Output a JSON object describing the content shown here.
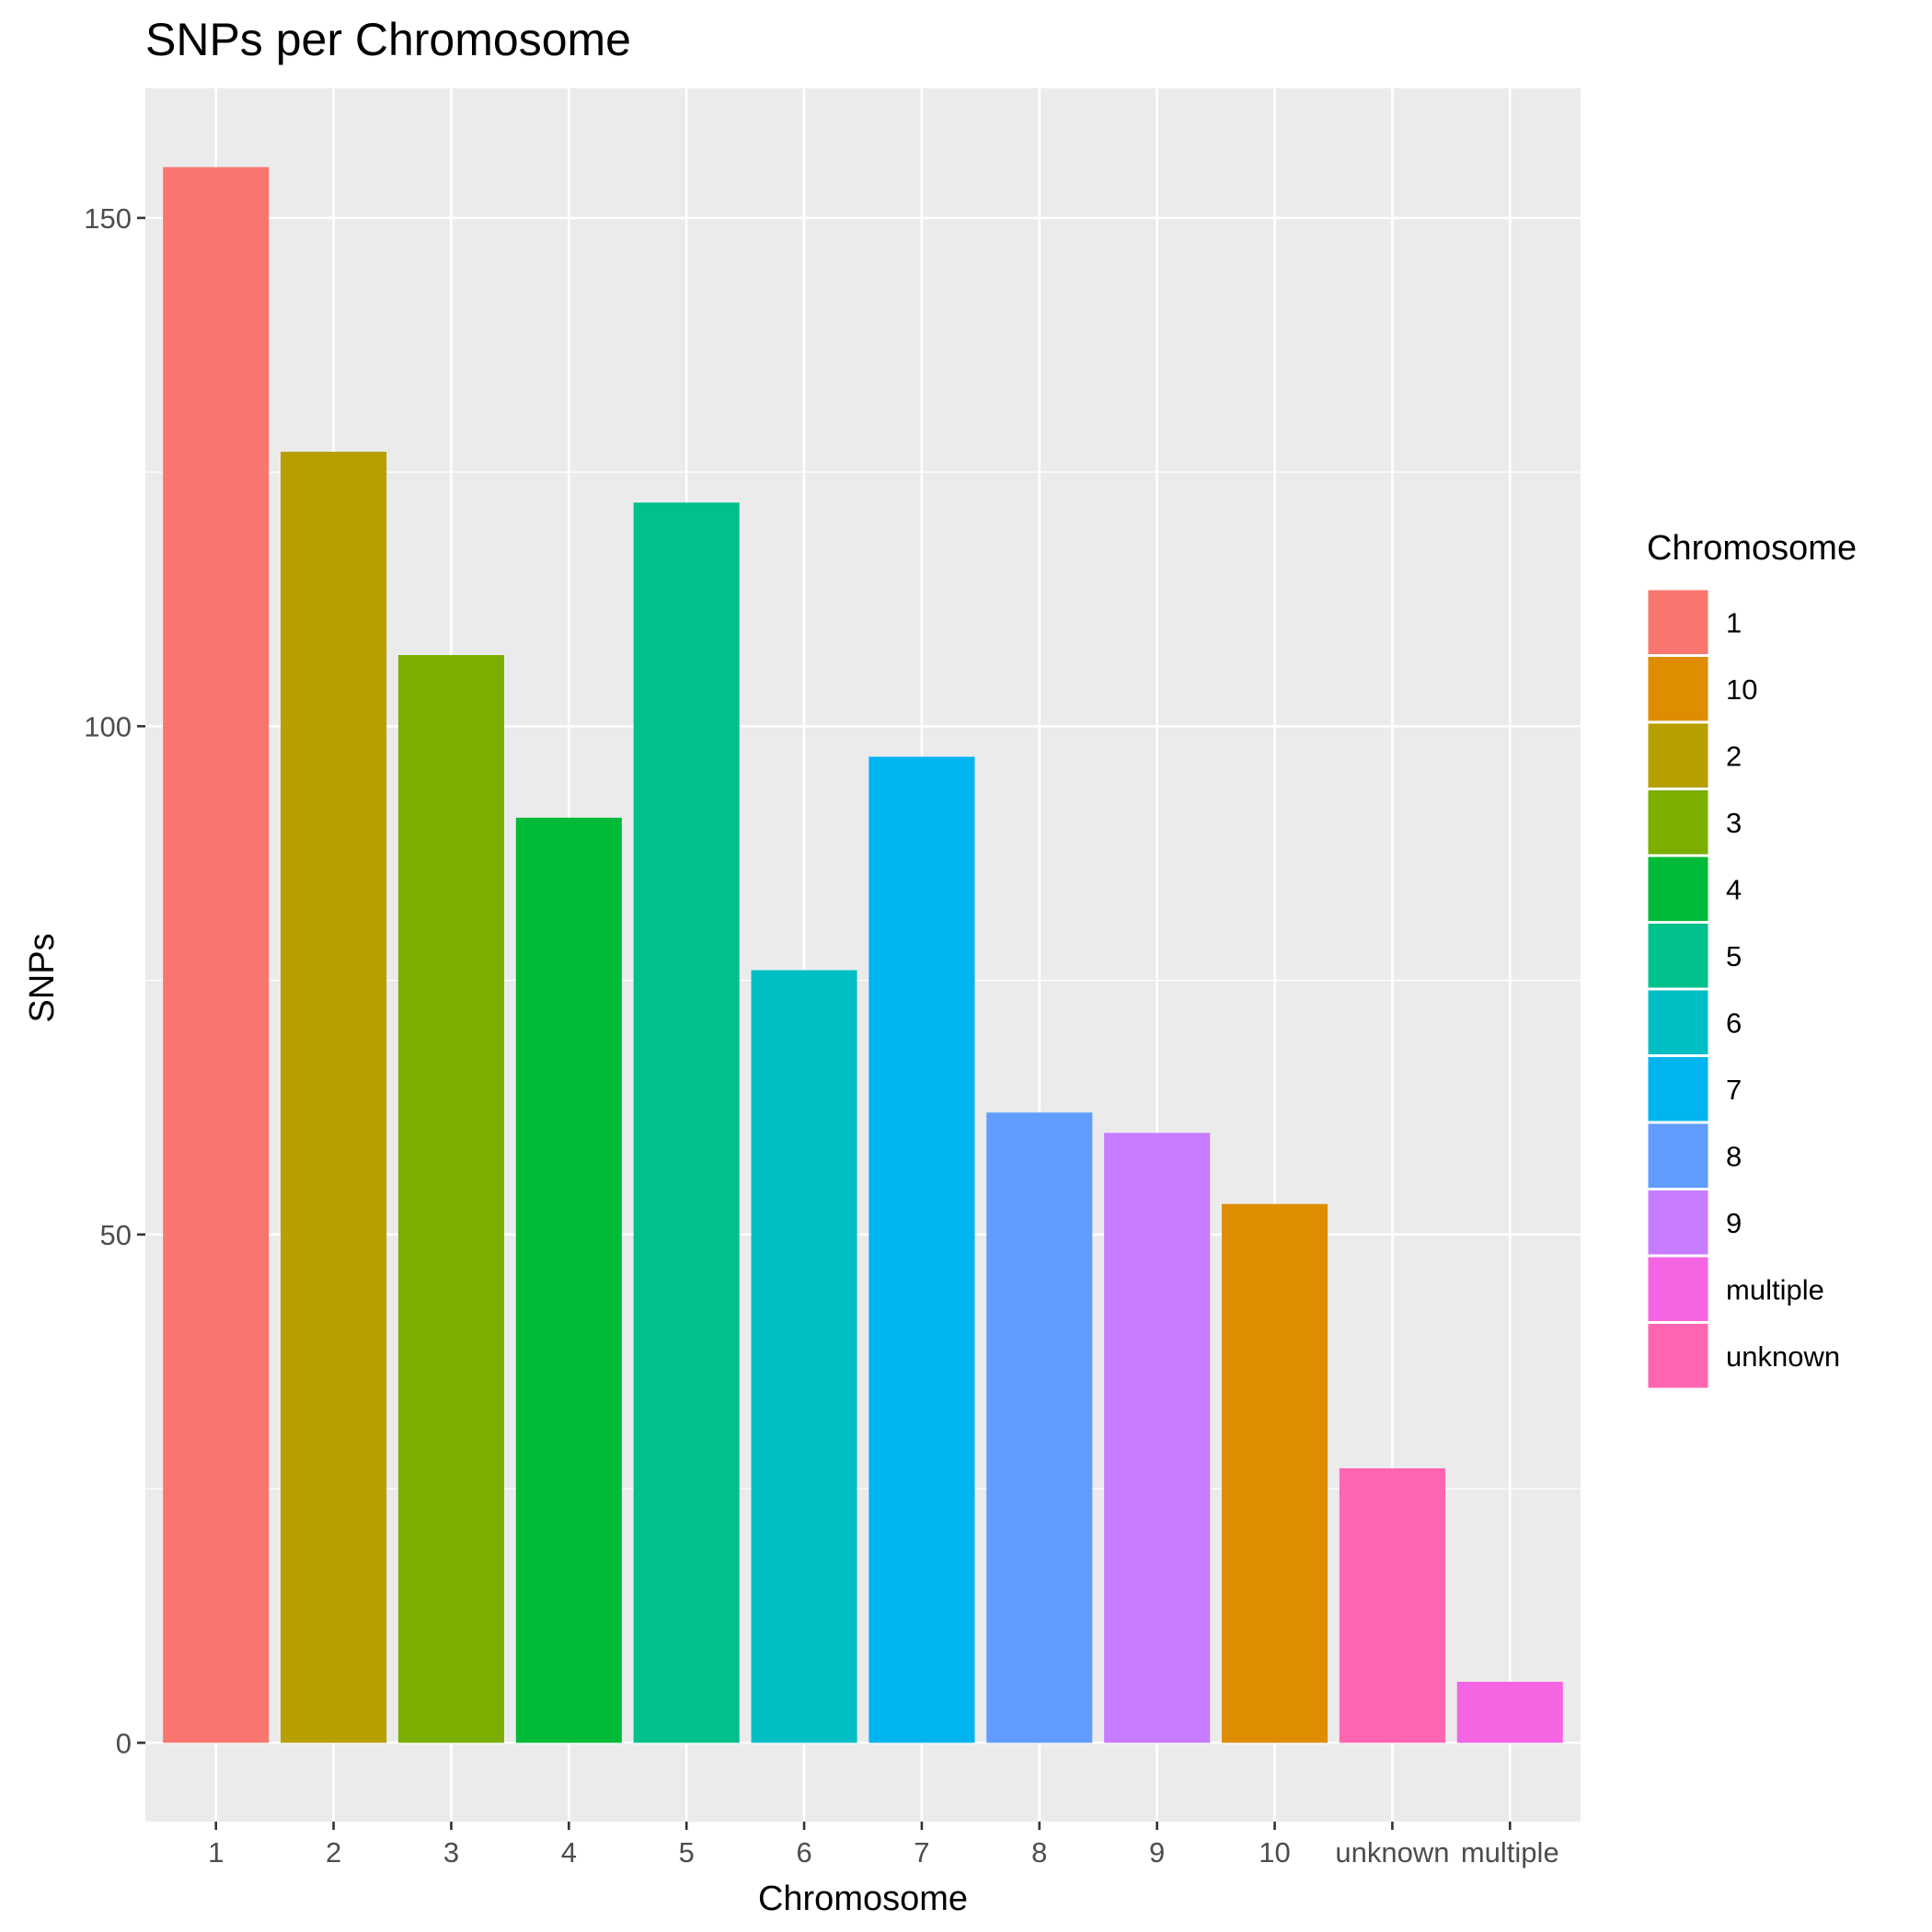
{
  "chart_data": {
    "type": "bar",
    "title": "SNPs per Chromosome",
    "xlabel": "Chromosome",
    "ylabel": "SNPs",
    "categories": [
      "1",
      "2",
      "3",
      "4",
      "5",
      "6",
      "7",
      "8",
      "9",
      "10",
      "unknown",
      "multiple"
    ],
    "values": [
      155,
      127,
      107,
      91,
      122,
      76,
      97,
      62,
      60,
      53,
      27,
      6
    ],
    "bar_colors": [
      "#F8766D",
      "#B79F00",
      "#7CAE00",
      "#00BA38",
      "#00C08B",
      "#00BFC4",
      "#00B4EF",
      "#619CFF",
      "#C77CFF",
      "#DE8C00",
      "#FF64B0",
      "#F564E3"
    ],
    "ylim": [
      -7.75,
      162.75
    ],
    "yticks": [
      0,
      50,
      100,
      150
    ],
    "grid": true,
    "panel_background": "#EBEBEB",
    "grid_color": "#FFFFFF",
    "legend": {
      "title": "Chromosome",
      "placement": "right",
      "items": [
        {
          "label": "1",
          "color": "#F8766D"
        },
        {
          "label": "10",
          "color": "#DE8C00"
        },
        {
          "label": "2",
          "color": "#B79F00"
        },
        {
          "label": "3",
          "color": "#7CAE00"
        },
        {
          "label": "4",
          "color": "#00BA38"
        },
        {
          "label": "5",
          "color": "#00C08B"
        },
        {
          "label": "6",
          "color": "#00BFC4"
        },
        {
          "label": "7",
          "color": "#00B4EF"
        },
        {
          "label": "8",
          "color": "#619CFF"
        },
        {
          "label": "9",
          "color": "#C77CFF"
        },
        {
          "label": "multiple",
          "color": "#F564E3"
        },
        {
          "label": "unknown",
          "color": "#FF64B0"
        }
      ]
    }
  }
}
